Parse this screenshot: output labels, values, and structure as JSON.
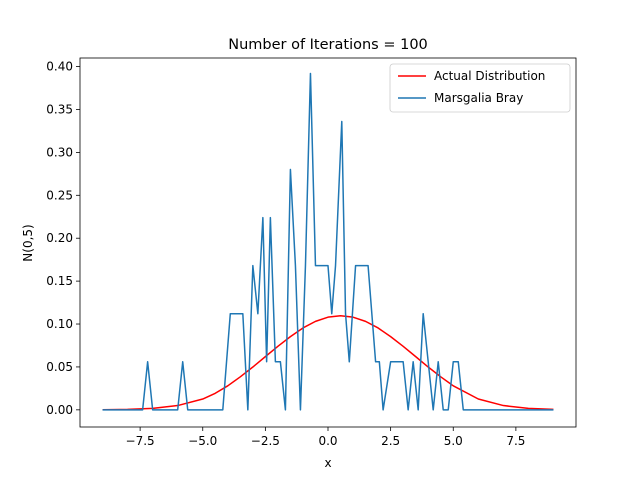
{
  "chart_data": {
    "type": "line",
    "title": "Number of Iterations = 100",
    "xlabel": "x",
    "ylabel": "N(0,5)",
    "xlim": [
      -9.9,
      9.9
    ],
    "ylim": [
      -0.02,
      0.41
    ],
    "xticks": [
      -7.5,
      -5.0,
      -2.5,
      0.0,
      2.5,
      5.0,
      7.5
    ],
    "xtick_labels": [
      "−7.5",
      "−5.0",
      "−2.5",
      "0.0",
      "2.5",
      "5.0",
      "7.5"
    ],
    "yticks": [
      0.0,
      0.05,
      0.1,
      0.15,
      0.2,
      0.25,
      0.3,
      0.35,
      0.4
    ],
    "ytick_labels": [
      "0.00",
      "0.05",
      "0.10",
      "0.15",
      "0.20",
      "0.25",
      "0.30",
      "0.35",
      "0.40"
    ],
    "grid": false,
    "legend_position": "top-right",
    "series": [
      {
        "name": "Actual Distribution",
        "color": "#ff0000",
        "x": [
          -9,
          -8,
          -7,
          -6,
          -5,
          -4.5,
          -4,
          -3.5,
          -3,
          -2.5,
          -2,
          -1.5,
          -1,
          -0.5,
          0,
          0.5,
          1,
          1.5,
          2,
          2.5,
          3,
          3.5,
          4,
          4.5,
          5,
          6,
          7,
          8,
          9
        ],
        "values": [
          0.0001,
          0.0005,
          0.0017,
          0.005,
          0.0126,
          0.0193,
          0.028,
          0.0385,
          0.0499,
          0.062,
          0.074,
          0.0853,
          0.0954,
          0.1031,
          0.108,
          0.1097,
          0.108,
          0.1031,
          0.0954,
          0.0853,
          0.074,
          0.062,
          0.0499,
          0.0385,
          0.028,
          0.0126,
          0.005,
          0.0017,
          0.0005
        ]
      },
      {
        "name": "Marsgalia Bray",
        "color": "#1f77b4",
        "x": [
          -9,
          -7.4,
          -7.2,
          -7.0,
          -6.0,
          -5.8,
          -5.6,
          -4.2,
          -3.9,
          -3.8,
          -3.4,
          -3.2,
          -3.0,
          -2.8,
          -2.6,
          -2.45,
          -2.3,
          -2.1,
          -1.9,
          -1.7,
          -1.5,
          -1.3,
          -1.1,
          -0.9,
          -0.7,
          -0.5,
          -0.3,
          0.0,
          0.15,
          0.3,
          0.55,
          0.7,
          0.85,
          1.1,
          1.3,
          1.6,
          1.9,
          2.05,
          2.2,
          2.5,
          2.8,
          3.0,
          3.2,
          3.4,
          3.6,
          3.8,
          4.0,
          4.2,
          4.4,
          4.6,
          4.8,
          5.0,
          5.2,
          5.4,
          6.0,
          9.0
        ],
        "values": [
          0.0,
          0.0,
          0.056,
          0.0,
          0.0,
          0.056,
          0.0,
          0.0,
          0.112,
          0.112,
          0.112,
          0.0,
          0.168,
          0.112,
          0.224,
          0.056,
          0.224,
          0.056,
          0.056,
          0.0,
          0.28,
          0.168,
          0.0,
          0.168,
          0.392,
          0.168,
          0.168,
          0.168,
          0.112,
          0.168,
          0.336,
          0.112,
          0.056,
          0.168,
          0.168,
          0.168,
          0.056,
          0.056,
          0.0,
          0.056,
          0.056,
          0.056,
          0.0,
          0.056,
          0.0,
          0.112,
          0.056,
          0.0,
          0.056,
          0.0,
          0.0,
          0.056,
          0.056,
          0.0,
          0.0,
          0.0
        ]
      }
    ]
  }
}
